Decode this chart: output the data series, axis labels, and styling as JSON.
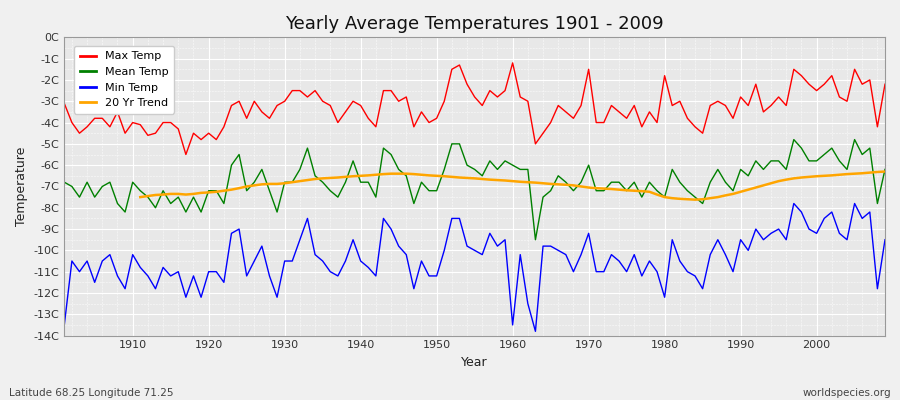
{
  "title": "Yearly Average Temperatures 1901 - 2009",
  "xlabel": "Year",
  "ylabel": "Temperature",
  "subtitle_left": "Latitude 68.25 Longitude 71.25",
  "subtitle_right": "worldspecies.org",
  "years": [
    1901,
    1902,
    1903,
    1904,
    1905,
    1906,
    1907,
    1908,
    1909,
    1910,
    1911,
    1912,
    1913,
    1914,
    1915,
    1916,
    1917,
    1918,
    1919,
    1920,
    1921,
    1922,
    1923,
    1924,
    1925,
    1926,
    1927,
    1928,
    1929,
    1930,
    1931,
    1932,
    1933,
    1934,
    1935,
    1936,
    1937,
    1938,
    1939,
    1940,
    1941,
    1942,
    1943,
    1944,
    1945,
    1946,
    1947,
    1948,
    1949,
    1950,
    1951,
    1952,
    1953,
    1954,
    1955,
    1956,
    1957,
    1958,
    1959,
    1960,
    1961,
    1962,
    1963,
    1964,
    1965,
    1966,
    1967,
    1968,
    1969,
    1970,
    1971,
    1972,
    1973,
    1974,
    1975,
    1976,
    1977,
    1978,
    1979,
    1980,
    1981,
    1982,
    1983,
    1984,
    1985,
    1986,
    1987,
    1988,
    1989,
    1990,
    1991,
    1992,
    1993,
    1994,
    1995,
    1996,
    1997,
    1998,
    1999,
    2000,
    2001,
    2002,
    2003,
    2004,
    2005,
    2006,
    2007,
    2008,
    2009
  ],
  "max_temp": [
    -3.1,
    -4.0,
    -4.5,
    -4.2,
    -3.8,
    -3.8,
    -4.2,
    -3.5,
    -4.5,
    -4.0,
    -4.1,
    -4.6,
    -4.5,
    -4.0,
    -4.0,
    -4.3,
    -5.5,
    -4.5,
    -4.8,
    -4.5,
    -4.8,
    -4.2,
    -3.2,
    -3.0,
    -3.8,
    -3.0,
    -3.5,
    -3.8,
    -3.2,
    -3.0,
    -2.5,
    -2.5,
    -2.8,
    -2.5,
    -3.0,
    -3.2,
    -4.0,
    -3.5,
    -3.0,
    -3.2,
    -3.8,
    -4.2,
    -2.5,
    -2.5,
    -3.0,
    -2.8,
    -4.2,
    -3.5,
    -4.0,
    -3.8,
    -3.0,
    -1.5,
    -1.3,
    -2.2,
    -2.8,
    -3.2,
    -2.5,
    -2.8,
    -2.5,
    -1.2,
    -2.8,
    -3.0,
    -5.0,
    -4.5,
    -4.0,
    -3.2,
    -3.5,
    -3.8,
    -3.2,
    -1.5,
    -4.0,
    -4.0,
    -3.2,
    -3.5,
    -3.8,
    -3.2,
    -4.2,
    -3.5,
    -4.0,
    -1.8,
    -3.2,
    -3.0,
    -3.8,
    -4.2,
    -4.5,
    -3.2,
    -3.0,
    -3.2,
    -3.8,
    -2.8,
    -3.2,
    -2.2,
    -3.5,
    -3.2,
    -2.8,
    -3.2,
    -1.5,
    -1.8,
    -2.2,
    -2.5,
    -2.2,
    -1.8,
    -2.8,
    -3.0,
    -1.5,
    -2.2,
    -2.0,
    -4.2,
    -2.2
  ],
  "mean_temp": [
    -6.8,
    -7.0,
    -7.5,
    -6.8,
    -7.5,
    -7.0,
    -6.8,
    -7.8,
    -8.2,
    -6.8,
    -7.2,
    -7.5,
    -8.0,
    -7.2,
    -7.8,
    -7.5,
    -8.2,
    -7.5,
    -8.2,
    -7.2,
    -7.2,
    -7.8,
    -6.0,
    -5.5,
    -7.2,
    -6.8,
    -6.2,
    -7.2,
    -8.2,
    -6.8,
    -6.8,
    -6.2,
    -5.2,
    -6.5,
    -6.8,
    -7.2,
    -7.5,
    -6.8,
    -5.8,
    -6.8,
    -6.8,
    -7.5,
    -5.2,
    -5.5,
    -6.2,
    -6.5,
    -7.8,
    -6.8,
    -7.2,
    -7.2,
    -6.2,
    -5.0,
    -5.0,
    -6.0,
    -6.2,
    -6.5,
    -5.8,
    -6.2,
    -5.8,
    -6.0,
    -6.2,
    -6.2,
    -9.5,
    -7.5,
    -7.2,
    -6.5,
    -6.8,
    -7.2,
    -6.8,
    -6.0,
    -7.2,
    -7.2,
    -6.8,
    -6.8,
    -7.2,
    -6.8,
    -7.5,
    -6.8,
    -7.2,
    -7.5,
    -6.2,
    -6.8,
    -7.2,
    -7.5,
    -7.8,
    -6.8,
    -6.2,
    -6.8,
    -7.2,
    -6.2,
    -6.5,
    -5.8,
    -6.2,
    -5.8,
    -5.8,
    -6.2,
    -4.8,
    -5.2,
    -5.8,
    -5.8,
    -5.5,
    -5.2,
    -5.8,
    -6.2,
    -4.8,
    -5.5,
    -5.2,
    -7.8,
    -6.2
  ],
  "min_temp": [
    -13.5,
    -10.5,
    -11.0,
    -10.5,
    -11.5,
    -10.5,
    -10.2,
    -11.2,
    -11.8,
    -10.2,
    -10.8,
    -11.2,
    -11.8,
    -10.8,
    -11.2,
    -11.0,
    -12.2,
    -11.2,
    -12.2,
    -11.0,
    -11.0,
    -11.5,
    -9.2,
    -9.0,
    -11.2,
    -10.5,
    -9.8,
    -11.2,
    -12.2,
    -10.5,
    -10.5,
    -9.5,
    -8.5,
    -10.2,
    -10.5,
    -11.0,
    -11.2,
    -10.5,
    -9.5,
    -10.5,
    -10.8,
    -11.2,
    -8.5,
    -9.0,
    -9.8,
    -10.2,
    -11.8,
    -10.5,
    -11.2,
    -11.2,
    -10.0,
    -8.5,
    -8.5,
    -9.8,
    -10.0,
    -10.2,
    -9.2,
    -9.8,
    -9.5,
    -13.5,
    -10.2,
    -12.5,
    -13.8,
    -9.8,
    -9.8,
    -10.0,
    -10.2,
    -11.0,
    -10.2,
    -9.2,
    -11.0,
    -11.0,
    -10.2,
    -10.5,
    -11.0,
    -10.2,
    -11.2,
    -10.5,
    -11.0,
    -12.2,
    -9.5,
    -10.5,
    -11.0,
    -11.2,
    -11.8,
    -10.2,
    -9.5,
    -10.2,
    -11.0,
    -9.5,
    -10.0,
    -9.0,
    -9.5,
    -9.2,
    -9.0,
    -9.5,
    -7.8,
    -8.2,
    -9.0,
    -9.2,
    -8.5,
    -8.2,
    -9.2,
    -9.5,
    -7.8,
    -8.5,
    -8.2,
    -11.8,
    -9.5
  ],
  "trend_20yr_years": [
    1911,
    1912,
    1913,
    1914,
    1915,
    1916,
    1917,
    1918,
    1919,
    1920,
    1921,
    1922,
    1923,
    1924,
    1925,
    1926,
    1927,
    1928,
    1929,
    1930,
    1931,
    1932,
    1933,
    1934,
    1935,
    1936,
    1937,
    1938,
    1939,
    1940,
    1941,
    1942,
    1943,
    1944,
    1945,
    1946,
    1947,
    1948,
    1949,
    1950,
    1951,
    1952,
    1953,
    1954,
    1955,
    1956,
    1957,
    1958,
    1959,
    1960,
    1961,
    1962,
    1963,
    1964,
    1965,
    1966,
    1967,
    1968,
    1969,
    1970,
    1971,
    1972,
    1973,
    1974,
    1975,
    1976,
    1977,
    1978,
    1979,
    1980,
    1981,
    1982,
    1983,
    1984,
    1985,
    1986,
    1987,
    1988,
    1989,
    1990,
    1991,
    1992,
    1993,
    1994,
    1995,
    1996,
    1997,
    1998,
    1999,
    2000,
    2001,
    2002,
    2003,
    2004,
    2005,
    2006,
    2007,
    2008,
    2009
  ],
  "trend_20yr_vals": [
    -7.5,
    -7.45,
    -7.4,
    -7.38,
    -7.35,
    -7.35,
    -7.38,
    -7.35,
    -7.3,
    -7.28,
    -7.25,
    -7.2,
    -7.15,
    -7.08,
    -7.0,
    -6.95,
    -6.9,
    -6.88,
    -6.88,
    -6.85,
    -6.8,
    -6.75,
    -6.7,
    -6.65,
    -6.62,
    -6.6,
    -6.58,
    -6.55,
    -6.52,
    -6.5,
    -6.48,
    -6.45,
    -6.42,
    -6.4,
    -6.4,
    -6.4,
    -6.42,
    -6.45,
    -6.48,
    -6.5,
    -6.52,
    -6.55,
    -6.58,
    -6.6,
    -6.62,
    -6.65,
    -6.68,
    -6.7,
    -6.72,
    -6.75,
    -6.78,
    -6.8,
    -6.82,
    -6.85,
    -6.88,
    -6.9,
    -6.92,
    -6.95,
    -7.0,
    -7.05,
    -7.08,
    -7.1,
    -7.12,
    -7.15,
    -7.18,
    -7.2,
    -7.22,
    -7.25,
    -7.38,
    -7.5,
    -7.55,
    -7.58,
    -7.6,
    -7.62,
    -7.6,
    -7.55,
    -7.5,
    -7.42,
    -7.35,
    -7.25,
    -7.15,
    -7.05,
    -6.95,
    -6.85,
    -6.75,
    -6.68,
    -6.62,
    -6.58,
    -6.55,
    -6.52,
    -6.5,
    -6.48,
    -6.45,
    -6.42,
    -6.4,
    -6.38,
    -6.35,
    -6.32,
    -6.3
  ],
  "bg_color": "#f0f0f0",
  "plot_bg_color": "#e8e8e8",
  "max_color": "#ff0000",
  "mean_color": "#008000",
  "min_color": "#0000ff",
  "trend_color": "#ffa500",
  "ylim": [
    -14,
    0
  ],
  "xlim": [
    1901,
    2009
  ],
  "yticks": [
    0,
    -1,
    -2,
    -3,
    -4,
    -5,
    -6,
    -7,
    -8,
    -9,
    -10,
    -11,
    -12,
    -13,
    -14
  ],
  "ytick_labels": [
    "0C",
    "-1C",
    "-2C",
    "-3C",
    "-4C",
    "-5C",
    "-6C",
    "-7C",
    "-8C",
    "-9C",
    "-10C",
    "-11C",
    "-12C",
    "-13C",
    "-14C"
  ],
  "xticks": [
    1910,
    1920,
    1930,
    1940,
    1950,
    1960,
    1970,
    1980,
    1990,
    2000
  ],
  "grid_color": "#ffffff",
  "line_width": 1.0
}
